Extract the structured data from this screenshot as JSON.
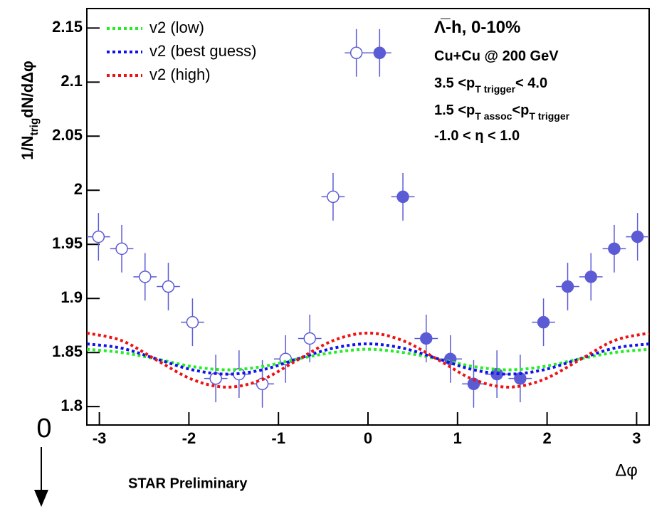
{
  "chart_data": {
    "type": "scatter",
    "xlim": [
      -3.14,
      3.14
    ],
    "ylim": [
      1.783,
      2.168
    ],
    "xticks": [
      -3,
      -2,
      -1,
      0,
      1,
      2,
      3
    ],
    "yticks": [
      1.8,
      1.85,
      1.9,
      1.95,
      2,
      2.05,
      2.1,
      2.15
    ],
    "x_label": "Δφ",
    "y_label": [
      {
        "text": "1/N"
      },
      {
        "sub": "trig"
      },
      {
        "text": "dN/dΔφ"
      }
    ],
    "annotations": [
      [
        {
          "text": "Λ̅-h, 0-10%"
        }
      ],
      [
        {
          "text": "Cu+Cu @ 200 GeV"
        }
      ],
      [
        {
          "text": "3.5 <p"
        },
        {
          "sub": "T trigger"
        },
        {
          "text": "< 4.0"
        }
      ],
      [
        {
          "text": "1.5 <p"
        },
        {
          "sub": "T assoc"
        },
        {
          "text": "<p"
        },
        {
          "sub": "T trigger"
        }
      ],
      [
        {
          "text": "-1.0 < η < 1.0"
        }
      ]
    ],
    "footer": "STAR Preliminary",
    "overlay_label": "0",
    "series": [
      {
        "type": "errorbar",
        "marker": "open",
        "color": "#5b5bd6",
        "xerr": 0.13,
        "x": [
          -0.13,
          -0.39,
          -0.65,
          -0.92,
          -1.18,
          -1.44,
          -1.7,
          -1.96,
          -2.23,
          -2.49,
          -2.75,
          -3.01
        ],
        "values": [
          2.127,
          1.994,
          1.863,
          1.844,
          1.821,
          1.83,
          1.826,
          1.878,
          1.911,
          1.92,
          1.946,
          1.957
        ],
        "yerr": [
          0.022,
          0.022,
          0.022,
          0.022,
          0.022,
          0.022,
          0.022,
          0.022,
          0.022,
          0.022,
          0.022,
          0.022
        ]
      },
      {
        "type": "errorbar",
        "marker": "filled",
        "color": "#5b5bd6",
        "xerr": 0.13,
        "x": [
          0.13,
          0.39,
          0.65,
          0.92,
          1.18,
          1.44,
          1.7,
          1.96,
          2.23,
          2.49,
          2.75,
          3.01
        ],
        "values": [
          2.127,
          1.994,
          1.863,
          1.844,
          1.821,
          1.83,
          1.826,
          1.878,
          1.911,
          1.92,
          1.946,
          1.957
        ],
        "yerr": [
          0.022,
          0.022,
          0.022,
          0.022,
          0.022,
          0.022,
          0.022,
          0.022,
          0.022,
          0.022,
          0.022,
          0.022
        ]
      },
      {
        "type": "line",
        "name": "v2 (low)",
        "color": "#22ee22",
        "x": [
          -3.14,
          -2.75,
          -2.36,
          -1.96,
          -1.57,
          -1.18,
          -0.79,
          -0.39,
          0,
          0.39,
          0.79,
          1.18,
          1.57,
          1.96,
          2.36,
          2.75,
          3.14
        ],
        "values": [
          1.853,
          1.85,
          1.844,
          1.837,
          1.834,
          1.837,
          1.844,
          1.85,
          1.853,
          1.85,
          1.844,
          1.837,
          1.834,
          1.837,
          1.844,
          1.85,
          1.853
        ]
      },
      {
        "type": "line",
        "name": "v2 (best guess)",
        "color": "#1111ee",
        "x": [
          -3.14,
          -2.75,
          -2.36,
          -1.96,
          -1.57,
          -1.18,
          -0.79,
          -0.39,
          0,
          0.39,
          0.79,
          1.18,
          1.57,
          1.96,
          2.36,
          2.75,
          3.14
        ],
        "values": [
          1.858,
          1.854,
          1.844,
          1.834,
          1.83,
          1.834,
          1.844,
          1.854,
          1.858,
          1.854,
          1.844,
          1.834,
          1.83,
          1.834,
          1.844,
          1.854,
          1.858
        ]
      },
      {
        "type": "line",
        "name": "v2 (high)",
        "color": "#ee1111",
        "x": [
          -3.14,
          -2.75,
          -2.36,
          -1.96,
          -1.57,
          -1.18,
          -0.79,
          -0.39,
          0,
          0.39,
          0.79,
          1.18,
          1.57,
          1.96,
          2.36,
          2.75,
          3.14
        ],
        "values": [
          1.868,
          1.861,
          1.843,
          1.825,
          1.818,
          1.825,
          1.843,
          1.861,
          1.868,
          1.861,
          1.843,
          1.825,
          1.818,
          1.825,
          1.843,
          1.861,
          1.868
        ]
      }
    ]
  }
}
